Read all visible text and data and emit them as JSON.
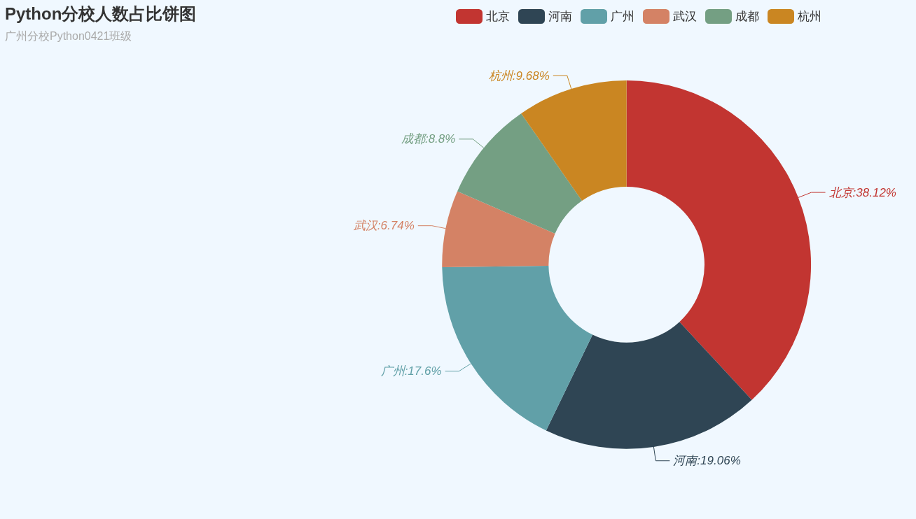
{
  "chart_data": {
    "type": "donut",
    "title": "Python分校人数占比饼图",
    "subtitle": "广州分校Python0421班级",
    "categories": [
      "北京",
      "河南",
      "广州",
      "武汉",
      "成都",
      "杭州"
    ],
    "values": [
      38.12,
      19.06,
      17.6,
      6.74,
      8.8,
      9.68
    ],
    "colors": [
      "#c23531",
      "#2f4554",
      "#61a0a8",
      "#d48265",
      "#749f83",
      "#ca8622"
    ],
    "value_labels": [
      "北京:38.12%",
      "河南:19.06%",
      "广州:17.6%",
      "武汉:6.74%",
      "成都:8.8%",
      "杭州:9.68%"
    ],
    "legend": "top right"
  }
}
